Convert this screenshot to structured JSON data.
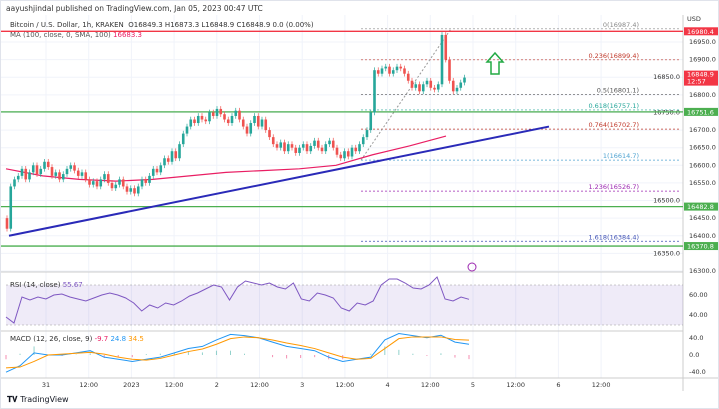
{
  "header": {
    "published": "aayushjindal published on TradingView.com, Jan 05, 2023 00:47 UTC",
    "symbol": "Bitcoin / U.S. Dollar, 1h, KRAKEN",
    "ohlc": "O16849.3  H16873.3  L16848.9  C16848.9  0.0 (0.00%)",
    "ma_label": "MA (100, close, 0, SMA, 100)",
    "ma_value": "16683.3"
  },
  "footer": {
    "brand": "TradingView"
  },
  "colors": {
    "up": "#26a69a",
    "down": "#ef5350",
    "ma": "#e91e63",
    "trend": "#2a2ab8",
    "rsi": "#7e57c2",
    "macd": "#2196f3",
    "signal": "#ff9800",
    "hline_green": "#4caf50",
    "hline_red": "#f23645",
    "arrow": "#22aa44"
  },
  "chart_data": [
    {
      "type": "candlestick",
      "title": "Bitcoin / U.S. Dollar, 1h, KRAKEN",
      "ylabel": "USD",
      "ylim": [
        16270,
        16990
      ],
      "y_ticks": [
        16950,
        16900,
        16850,
        16800,
        16750,
        16700,
        16650,
        16600,
        16550,
        16500,
        16450,
        16400,
        16350,
        16300
      ],
      "x_ticks": [
        "31",
        "12:00",
        "2023",
        "12:00",
        "2",
        "12:00",
        "3",
        "12:00",
        "4",
        "12:00",
        "5",
        "12:00",
        "6",
        "12:00"
      ],
      "closes": [
        16420,
        16540,
        16560,
        16570,
        16590,
        16560,
        16580,
        16600,
        16575,
        16590,
        16610,
        16595,
        16570,
        16580,
        16560,
        16575,
        16590,
        16600,
        16585,
        16570,
        16580,
        16560,
        16545,
        16555,
        16540,
        16560,
        16575,
        16550,
        16535,
        16545,
        16560,
        16540,
        16525,
        16535,
        16520,
        16540,
        16560,
        16550,
        16570,
        16590,
        16580,
        16600,
        16620,
        16610,
        16640,
        16620,
        16660,
        16690,
        16710,
        16730,
        16720,
        16740,
        16730,
        16725,
        16750,
        16740,
        16760,
        16745,
        16730,
        16720,
        16740,
        16755,
        16730,
        16710,
        16690,
        16720,
        16740,
        16710,
        16730,
        16700,
        16680,
        16660,
        16650,
        16665,
        16640,
        16660,
        16650,
        16635,
        16650,
        16660,
        16640,
        16655,
        16670,
        16650,
        16640,
        16660,
        16670,
        16650,
        16630,
        16620,
        16640,
        16625,
        16650,
        16640,
        16660,
        16680,
        16700,
        16750,
        16870,
        16860,
        16875,
        16880,
        16860,
        16870,
        16880,
        16875,
        16860,
        16840,
        16820,
        16830,
        16810,
        16830,
        16840,
        16820,
        16815,
        16830,
        16970,
        16900,
        16840,
        16810,
        16820,
        16835,
        16849
      ],
      "horizontal_levels": [
        {
          "value": 16980.4,
          "color": "red",
          "label": "16980.4"
        },
        {
          "value": 16751.6,
          "color": "green",
          "label": "16751.6"
        },
        {
          "value": 16482.8,
          "color": "green",
          "label": "16482.8"
        },
        {
          "value": 16370.8,
          "color": "green",
          "label": "16370.8"
        }
      ],
      "last_price": {
        "value": "16848.9",
        "countdown": "12:57"
      },
      "fibonacci": [
        {
          "label": "0(16987.4)",
          "value": 16987.4
        },
        {
          "label": "0.236(16899.4)",
          "value": 16899.4
        },
        {
          "label": "0.5(16801.1)",
          "value": 16801.1
        },
        {
          "label": "0.618(16757.1)",
          "value": 16757.1
        },
        {
          "label": "0.764(16702.7)",
          "value": 16702.7
        },
        {
          "label": "1(16614.7)",
          "value": 16614.7
        },
        {
          "label": "1.236(16526.7)",
          "value": 16526.7
        },
        {
          "label": "1.618(16384.4)",
          "value": 16384.4
        }
      ],
      "ma_series": [
        16590,
        16570,
        16560,
        16555,
        16560,
        16570,
        16580,
        16585,
        16590,
        16600,
        16630,
        16655,
        16683
      ],
      "trendline": [
        16400,
        16710
      ]
    },
    {
      "type": "line",
      "title": "RSI (14, close)",
      "value_label": "55.67",
      "ylim": [
        20,
        80
      ],
      "y_ticks": [
        "60.00",
        "40.00"
      ],
      "band": [
        30,
        70
      ],
      "values": [
        38,
        32,
        58,
        55,
        58,
        56,
        60,
        61,
        58,
        56,
        54,
        57,
        60,
        62,
        60,
        57,
        52,
        44,
        50,
        47,
        52,
        50,
        54,
        59,
        62,
        66,
        70,
        68,
        55,
        68,
        74,
        72,
        70,
        72,
        68,
        66,
        72,
        56,
        54,
        62,
        60,
        57,
        47,
        44,
        52,
        50,
        54,
        70,
        76,
        76,
        72,
        67,
        66,
        70,
        78,
        56,
        54,
        58,
        55.67
      ]
    },
    {
      "type": "line",
      "title": "MACD (12, 26, close, 9)",
      "value_labels": [
        "-9.7",
        "24.8",
        "34.5"
      ],
      "ylim": [
        -45,
        55
      ],
      "y_ticks": [
        "40.0",
        "0.0",
        "-40.0"
      ],
      "macd": [
        -40,
        -25,
        5,
        0,
        0,
        5,
        10,
        -5,
        -10,
        -15,
        -10,
        -5,
        5,
        15,
        20,
        35,
        48,
        45,
        40,
        30,
        20,
        15,
        10,
        -5,
        -15,
        -10,
        -5,
        35,
        50,
        45,
        40,
        46,
        30,
        25
      ],
      "signal": [
        -30,
        -28,
        -15,
        0,
        2,
        4,
        6,
        2,
        -5,
        -10,
        -12,
        -8,
        0,
        8,
        14,
        25,
        38,
        42,
        40,
        35,
        28,
        22,
        15,
        5,
        -5,
        -10,
        -8,
        15,
        38,
        42,
        42,
        42,
        36,
        34.5
      ]
    }
  ]
}
